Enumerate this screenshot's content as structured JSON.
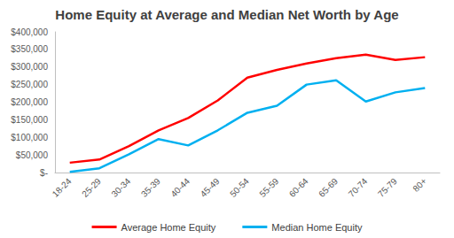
{
  "chart_data": {
    "type": "line",
    "title": "Home Equity at Average and Median Net Worth by Age",
    "categories": [
      "18-24",
      "25-29",
      "30-34",
      "35-39",
      "40-44",
      "45-49",
      "50-54",
      "55-59",
      "60-64",
      "65-69",
      "70-74",
      "75-79",
      "80+"
    ],
    "series": [
      {
        "name": "Average Home Equity",
        "color": "#ff0000",
        "values": [
          28000,
          37000,
          75000,
          120000,
          155000,
          205000,
          270000,
          292000,
          310000,
          325000,
          335000,
          320000,
          328000
        ]
      },
      {
        "name": "Median Home Equity",
        "color": "#00b0f0",
        "values": [
          2000,
          12000,
          52000,
          95000,
          77000,
          120000,
          170000,
          190000,
          250000,
          262000,
          202000,
          228000,
          240000
        ]
      }
    ],
    "ylim": [
      0,
      400000
    ],
    "yticks": [
      {
        "value": 0,
        "label": "$-"
      },
      {
        "value": 50000,
        "label": "$50,000"
      },
      {
        "value": 100000,
        "label": "$100,000"
      },
      {
        "value": 150000,
        "label": "$150,000"
      },
      {
        "value": 200000,
        "label": "$200,000"
      },
      {
        "value": 250000,
        "label": "$250,000"
      },
      {
        "value": 300000,
        "label": "$300,000"
      },
      {
        "value": 350000,
        "label": "$350,000"
      },
      {
        "value": 400000,
        "label": "$400,000"
      }
    ],
    "grid": false,
    "legend": "bottom"
  }
}
